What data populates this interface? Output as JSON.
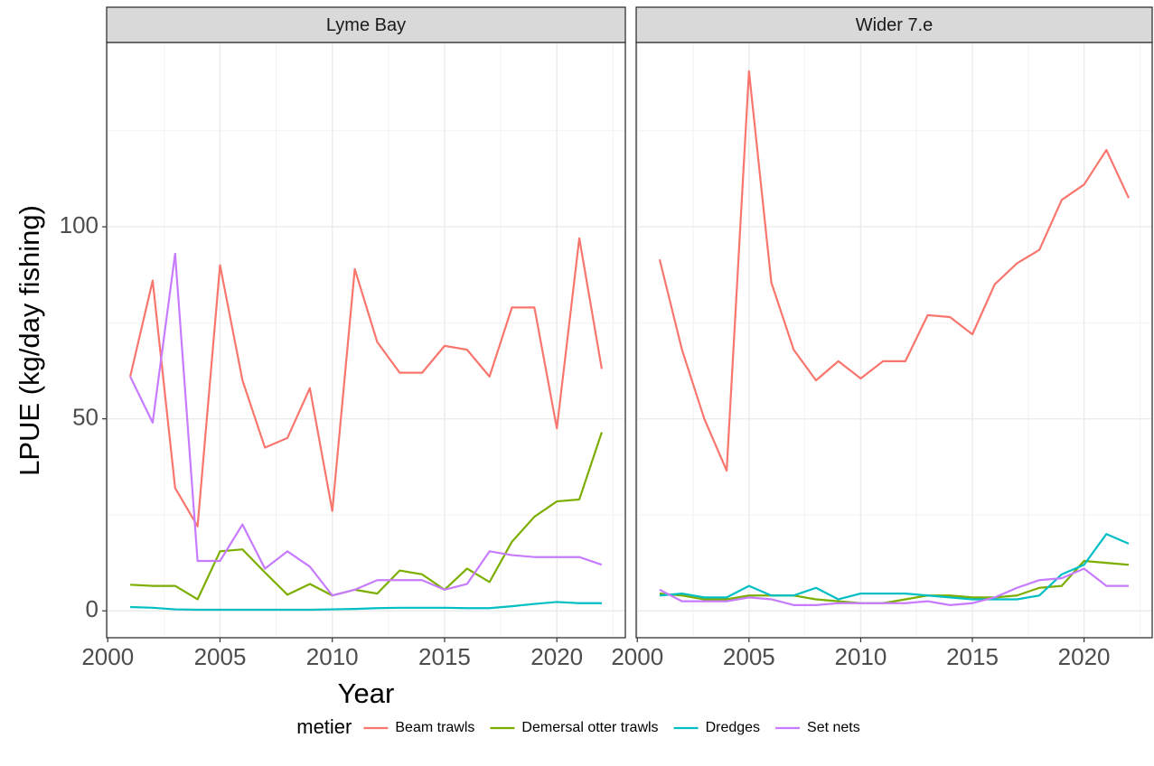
{
  "chart_data": [
    {
      "type": "line",
      "title": "Lyme Bay",
      "xlabel": "Year",
      "ylabel": "LPUE (kg/day fishing)",
      "legend_title": "metier",
      "x": [
        2001,
        2002,
        2003,
        2004,
        2005,
        2006,
        2007,
        2008,
        2009,
        2010,
        2011,
        2012,
        2013,
        2014,
        2015,
        2016,
        2017,
        2018,
        2019,
        2020,
        2021,
        2022
      ],
      "xlim": [
        1999.95,
        2023.05
      ],
      "xticks": [
        2000,
        2005,
        2010,
        2015,
        2020
      ],
      "ylim": [
        -7,
        148
      ],
      "yticks": [
        0,
        50,
        100
      ],
      "grid": true,
      "series": [
        {
          "name": "Beam trawls",
          "color": "#F8766D",
          "values": [
            61,
            86,
            32,
            22,
            90,
            60,
            42.5,
            45,
            58,
            26,
            89,
            70,
            62,
            62,
            69,
            68,
            61,
            79,
            79,
            47.5,
            97,
            63
          ]
        },
        {
          "name": "Demersal otter trawls",
          "color": "#7CAE00",
          "values": [
            6.8,
            6.5,
            6.5,
            3,
            15.5,
            16,
            10,
            4.2,
            7,
            4,
            5.5,
            4.5,
            10.5,
            9.5,
            5.5,
            11,
            7.5,
            18,
            24.5,
            28.5,
            29,
            46.5
          ]
        },
        {
          "name": "Dredges",
          "color": "#00BFC4",
          "values": [
            1,
            0.8,
            0.4,
            0.3,
            0.3,
            0.3,
            0.3,
            0.3,
            0.3,
            0.4,
            0.5,
            0.7,
            0.8,
            0.8,
            0.8,
            0.7,
            0.7,
            1.2,
            1.8,
            2.3,
            2,
            2
          ]
        },
        {
          "name": "Set nets",
          "color": "#C77CFF",
          "values": [
            61,
            49,
            93,
            13,
            13,
            22.5,
            11,
            15.5,
            11.5,
            4,
            5.5,
            8,
            8,
            8,
            5.5,
            7,
            15.5,
            14.5,
            14,
            14,
            14,
            12
          ]
        }
      ]
    },
    {
      "type": "line",
      "title": "Wider 7.e",
      "x": [
        2001,
        2002,
        2003,
        2004,
        2005,
        2006,
        2007,
        2008,
        2009,
        2010,
        2011,
        2012,
        2013,
        2014,
        2015,
        2016,
        2017,
        2018,
        2019,
        2020,
        2021,
        2022
      ],
      "xlim": [
        1999.95,
        2023.05
      ],
      "xticks": [
        2000,
        2005,
        2010,
        2015,
        2020
      ],
      "ylim": [
        -7,
        148
      ],
      "yticks": [
        0,
        50,
        100
      ],
      "grid": true,
      "series": [
        {
          "color": "#F8766D",
          "values": [
            91.5,
            68,
            50,
            36.5,
            140.5,
            85.5,
            68,
            60,
            65,
            60.5,
            65,
            65,
            77,
            76.5,
            72,
            85,
            90.5,
            94,
            107,
            111,
            120,
            107.5
          ]
        },
        {
          "color": "#7CAE00",
          "values": [
            4.5,
            4,
            3,
            3,
            4,
            4,
            4,
            3,
            2.5,
            2,
            2,
            3,
            4,
            4,
            3.5,
            3.5,
            4,
            6,
            6.5,
            13,
            12.5,
            12
          ]
        },
        {
          "color": "#00BFC4",
          "values": [
            4,
            4.5,
            3.5,
            3.5,
            6.5,
            4,
            4,
            6,
            3,
            4.5,
            4.5,
            4.5,
            4,
            3.5,
            3,
            3,
            3,
            4,
            9.5,
            12,
            20,
            17.5
          ]
        },
        {
          "color": "#C77CFF",
          "values": [
            5.5,
            2.5,
            2.5,
            2.5,
            3.5,
            3,
            1.5,
            1.5,
            2,
            2,
            2,
            2,
            2.5,
            1.5,
            2,
            3.5,
            6,
            8,
            8.5,
            11,
            6.5,
            6.5
          ]
        }
      ]
    }
  ]
}
